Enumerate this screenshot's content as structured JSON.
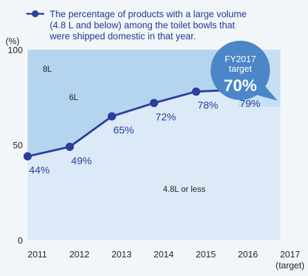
{
  "chart_data": {
    "type": "line",
    "legend": {
      "placement": "top",
      "lines": [
        "The percentage of products with a large volume",
        "(4.8 L and below) among the toilet bowls that",
        "were shipped domestic in that year."
      ]
    },
    "y_unit": "(%)",
    "ylim": [
      0,
      100
    ],
    "y_ticks": [
      "0",
      "50",
      "100"
    ],
    "x_ticks": [
      "2011",
      "2012",
      "2013",
      "2014",
      "2015",
      "2016",
      "2017"
    ],
    "x_tick_note": "(target)",
    "series": [
      {
        "x": [
          "2011",
          "2012",
          "2013",
          "2014",
          "2015",
          "2016"
        ],
        "values": [
          44,
          49,
          65,
          72,
          78,
          79
        ],
        "labels": [
          "44%",
          "49%",
          "65%",
          "72%",
          "78%",
          "79%"
        ]
      }
    ],
    "regions": [
      "8L",
      "6L",
      "4.8L or less"
    ],
    "target": {
      "year": "2017",
      "value": 70,
      "line1": "FY2017",
      "line2": "target",
      "value_label": "70%"
    },
    "colors": {
      "line": "#2b3f9c",
      "upper_area": "#b5d5ee",
      "lower_area": "#dbeaf6",
      "target_band": "#c6dff2",
      "callout": "#4a86c8"
    }
  }
}
